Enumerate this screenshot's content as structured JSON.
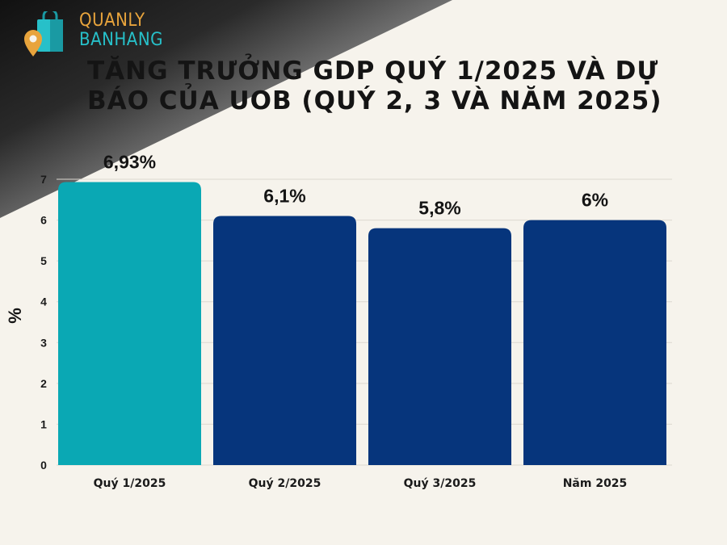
{
  "brand": {
    "line1": "QUANLY",
    "line2": "BANHANG"
  },
  "chart_data": {
    "type": "bar",
    "title": "TĂNG TRƯỞNG GDP QUÝ 1/2025 VÀ DỰ BÁO CỦA UOB (QUÝ 2, 3 VÀ NĂM 2025)",
    "xlabel": "",
    "ylabel": "%",
    "categories": [
      "Quý 1/2025",
      "Quý 2/2025",
      "Quý 3/2025",
      "Năm 2025"
    ],
    "values": [
      6.93,
      6.1,
      5.8,
      6
    ],
    "data_labels": [
      "6,93%",
      "6,1%",
      "5,8%",
      "6%"
    ],
    "yticks": [
      0,
      1,
      2,
      3,
      4,
      5,
      6,
      7
    ],
    "ylim": [
      0,
      7
    ],
    "grid": true,
    "colors": [
      "#0aa8b4",
      "#06357c",
      "#06357c",
      "#06357c"
    ]
  }
}
